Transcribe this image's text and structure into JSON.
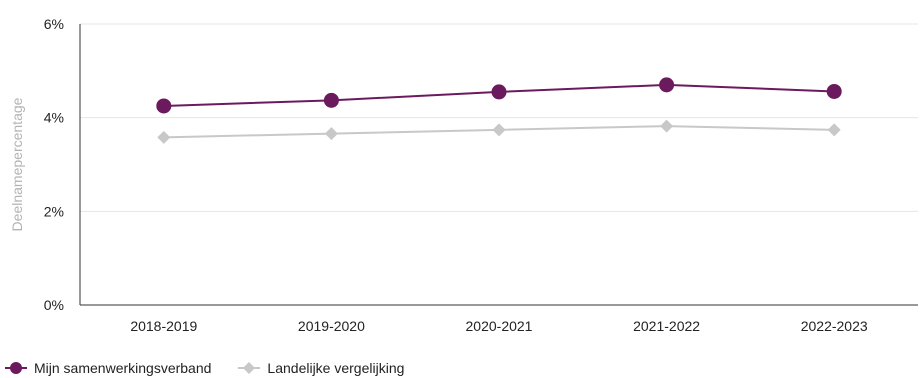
{
  "chart_data": {
    "type": "line",
    "categories": [
      "2018-2019",
      "2019-2020",
      "2020-2021",
      "2021-2022",
      "2022-2023"
    ],
    "series": [
      {
        "name": "Mijn samenwerkingsverband",
        "values": [
          4.25,
          4.37,
          4.55,
          4.7,
          4.56
        ],
        "color": "#6b1a5e",
        "marker": "circle"
      },
      {
        "name": "Landelijke vergelijking",
        "values": [
          3.58,
          3.66,
          3.74,
          3.82,
          3.74
        ],
        "color": "#c8c8c8",
        "marker": "diamond"
      }
    ],
    "yticks": [
      "0%",
      "2%",
      "4%",
      "6%"
    ],
    "ylim": [
      0,
      6
    ],
    "ylabel": "Deelnamepercentage",
    "grid": true,
    "legend_position": "bottom-left"
  }
}
